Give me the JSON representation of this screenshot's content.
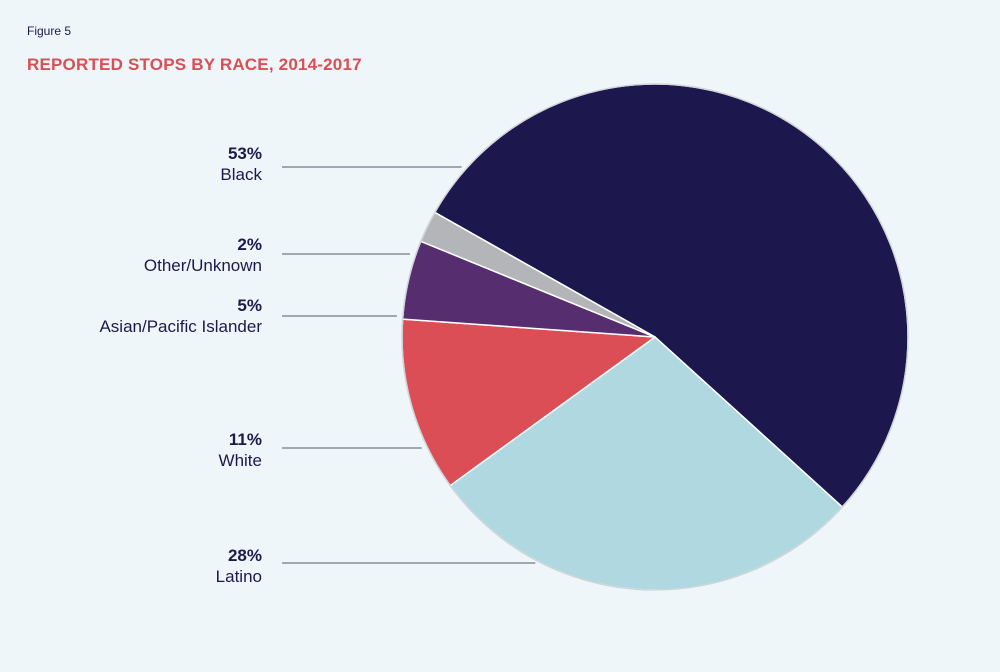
{
  "figure_label": "Figure 5",
  "chart_data": {
    "type": "pie",
    "title": "REPORTED STOPS BY RACE, 2014-2017",
    "slices": [
      {
        "name": "Black",
        "value": 53,
        "label": "53%",
        "color": "#1c174d"
      },
      {
        "name": "Latino",
        "value": 28,
        "label": "28%",
        "color": "#afd8e0"
      },
      {
        "name": "White",
        "value": 11,
        "label": "11%",
        "color": "#dc4e55"
      },
      {
        "name": "Asian/Pacific Islander",
        "value": 5,
        "label": "5%",
        "color": "#562d6e"
      },
      {
        "name": "Other/Unknown",
        "value": 2,
        "label": "2%",
        "color": "#b3b5b8"
      }
    ]
  }
}
